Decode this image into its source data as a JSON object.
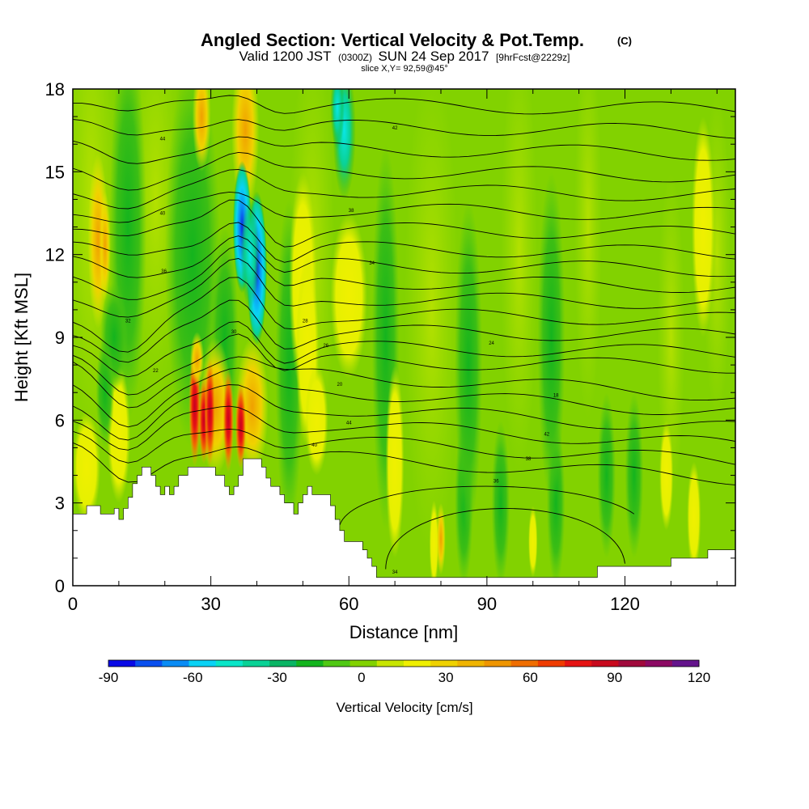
{
  "title": "Angled Section: Vertical Velocity & Pot.Temp.",
  "title_unit": "(C)",
  "subtitle": {
    "part1": "Valid 1200 JST",
    "part2": "(0300Z)",
    "part3": "SUN 24 Sep 2017",
    "part4": "[9hrFcst@2229z]"
  },
  "slice_label": "slice X,Y= 92,59@45°",
  "chart_data": {
    "type": "heatmap",
    "xlabel": "Distance [nm]",
    "ylabel": "Height [Kft MSL]",
    "xlim": [
      0,
      144
    ],
    "ylim": [
      0,
      18
    ],
    "xticks": [
      0,
      30,
      60,
      90,
      120
    ],
    "yticks": [
      0,
      3,
      6,
      9,
      12,
      15,
      18
    ],
    "colorbar": {
      "label": "Vertical Velocity [cm/s]",
      "ticks": [
        -90,
        -60,
        -30,
        0,
        30,
        60,
        90,
        120
      ],
      "boundaries": [
        -90,
        120
      ],
      "colors": [
        "#0a0ae6",
        "#0a50f0",
        "#0a8cf5",
        "#0ad2f5",
        "#0ae6c8",
        "#0ad296",
        "#0ab464",
        "#14b41e",
        "#50c814",
        "#82d200",
        "#c8e600",
        "#f0f000",
        "#f0d200",
        "#f0b400",
        "#f09600",
        "#f06e00",
        "#f03c00",
        "#e61414",
        "#c80a1e",
        "#a00a3c",
        "#8c0a64",
        "#64148c"
      ]
    },
    "terrain_kft": [
      [
        0,
        2.6
      ],
      [
        3,
        2.6
      ],
      [
        3,
        2.9
      ],
      [
        6,
        2.9
      ],
      [
        6,
        2.6
      ],
      [
        9,
        2.6
      ],
      [
        9,
        2.8
      ],
      [
        10,
        2.8
      ],
      [
        10,
        2.4
      ],
      [
        11,
        2.4
      ],
      [
        11,
        2.8
      ],
      [
        12,
        2.8
      ],
      [
        12,
        3.2
      ],
      [
        13,
        3.2
      ],
      [
        13,
        3.7
      ],
      [
        14,
        3.7
      ],
      [
        14,
        4.0
      ],
      [
        15,
        4.0
      ],
      [
        15,
        4.3
      ],
      [
        17,
        4.3
      ],
      [
        17,
        4.0
      ],
      [
        18,
        4.0
      ],
      [
        18,
        3.6
      ],
      [
        19,
        3.6
      ],
      [
        19,
        3.3
      ],
      [
        20,
        3.3
      ],
      [
        20,
        3.6
      ],
      [
        21,
        3.6
      ],
      [
        21,
        3.3
      ],
      [
        22,
        3.3
      ],
      [
        22,
        3.6
      ],
      [
        23,
        3.6
      ],
      [
        23,
        4.0
      ],
      [
        25,
        4.0
      ],
      [
        25,
        4.3
      ],
      [
        28,
        4.3
      ],
      [
        28,
        4.3
      ],
      [
        31,
        4.3
      ],
      [
        31,
        4.0
      ],
      [
        33,
        4.0
      ],
      [
        33,
        3.6
      ],
      [
        34,
        3.6
      ],
      [
        34,
        3.3
      ],
      [
        35,
        3.3
      ],
      [
        35,
        3.6
      ],
      [
        36,
        3.6
      ],
      [
        36,
        4.0
      ],
      [
        37,
        4.0
      ],
      [
        37,
        4.6
      ],
      [
        41,
        4.6
      ],
      [
        41,
        4.3
      ],
      [
        42,
        4.3
      ],
      [
        42,
        3.9
      ],
      [
        43,
        3.9
      ],
      [
        43,
        3.6
      ],
      [
        45,
        3.6
      ],
      [
        45,
        3.3
      ],
      [
        46,
        3.3
      ],
      [
        46,
        3.0
      ],
      [
        48,
        3.0
      ],
      [
        48,
        2.6
      ],
      [
        49,
        2.6
      ],
      [
        49,
        3.0
      ],
      [
        50,
        3.0
      ],
      [
        50,
        3.3
      ],
      [
        51,
        3.3
      ],
      [
        51,
        3.6
      ],
      [
        52,
        3.6
      ],
      [
        52,
        3.3
      ],
      [
        56,
        3.3
      ],
      [
        56,
        2.9
      ],
      [
        57,
        2.9
      ],
      [
        57,
        2.4
      ],
      [
        58,
        2.4
      ],
      [
        58,
        2.0
      ],
      [
        59,
        2.0
      ],
      [
        59,
        1.6
      ],
      [
        63,
        1.6
      ],
      [
        63,
        1.3
      ],
      [
        64,
        1.3
      ],
      [
        64,
        1.0
      ],
      [
        65,
        1.0
      ],
      [
        65,
        0.7
      ],
      [
        66,
        0.7
      ],
      [
        66,
        0.3
      ],
      [
        114,
        0.3
      ],
      [
        114,
        0.7
      ],
      [
        130,
        0.7
      ],
      [
        130,
        1.0
      ],
      [
        138,
        1.0
      ],
      [
        138,
        1.3
      ],
      [
        144,
        1.3
      ],
      [
        144,
        0
      ],
      [
        0,
        0
      ]
    ],
    "contour_label_values": [
      "44",
      "42",
      "40",
      "38",
      "36",
      "34",
      "32",
      "30",
      "28",
      "26",
      "24",
      "22",
      "20",
      "18"
    ]
  }
}
